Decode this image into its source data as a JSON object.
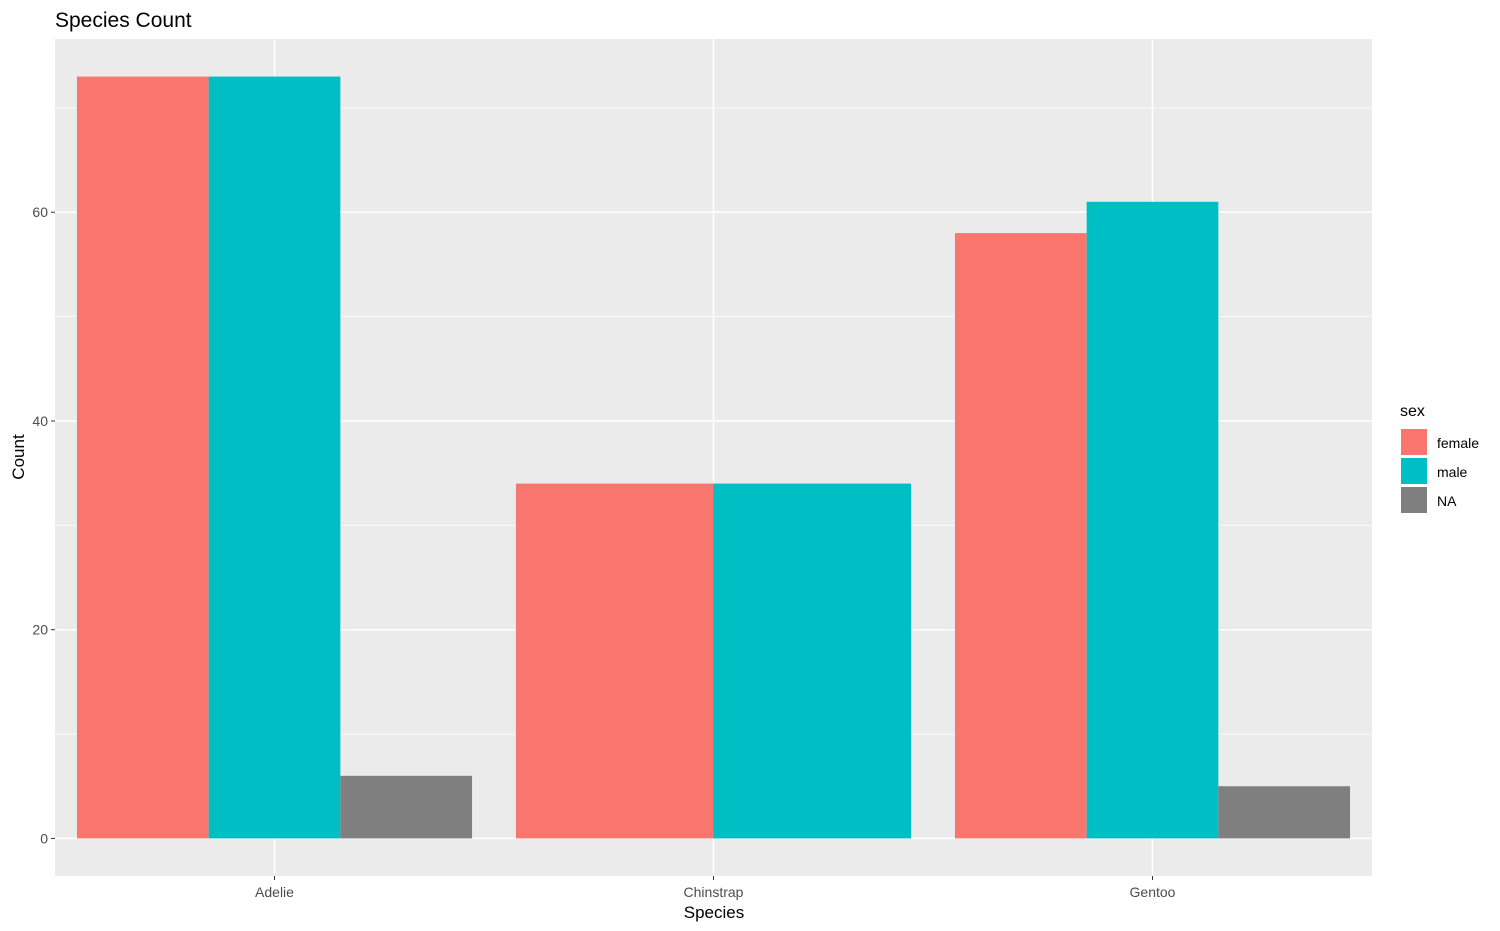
{
  "chart_data": {
    "type": "bar",
    "title": "Species Count",
    "xlabel": "Species",
    "ylabel": "Count",
    "categories": [
      "Adelie",
      "Chinstrap",
      "Gentoo"
    ],
    "ylim": [
      -3.6,
      76.6
    ],
    "yticks": [
      0,
      20,
      40,
      60
    ],
    "grid": true,
    "legend_title": "sex",
    "legend_position": "right",
    "series": [
      {
        "name": "female",
        "color": "#F8766D",
        "values": [
          73,
          34,
          58
        ]
      },
      {
        "name": "male",
        "color": "#00BFC4",
        "values": [
          73,
          34,
          61
        ]
      },
      {
        "name": "NA",
        "color": "#7F7F7F",
        "values": [
          6,
          null,
          5
        ]
      }
    ]
  },
  "colors": {
    "panel_background": "#EBEBEB",
    "grid_line": "#FFFFFF",
    "tick_text": "#4D4D4D"
  }
}
